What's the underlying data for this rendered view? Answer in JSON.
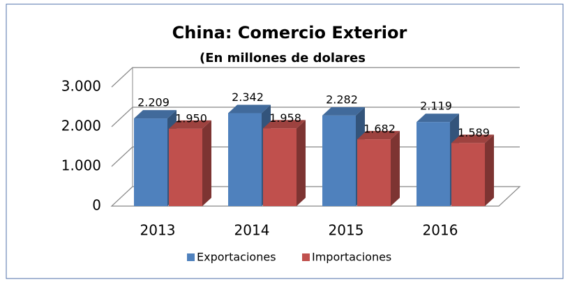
{
  "chart_data": {
    "type": "bar3d",
    "title": "China: Comercio Exterior",
    "subtitle": "(En millones de dolares",
    "categories": [
      "2013",
      "2014",
      "2015",
      "2016"
    ],
    "series": [
      {
        "name": "Exportaciones",
        "color": "#4f81bd",
        "values": [
          2209,
          2342,
          2282,
          2119
        ],
        "value_labels": [
          "2.209",
          "2.342",
          "2.282",
          "2.119"
        ]
      },
      {
        "name": "Importaciones",
        "color": "#c0504d",
        "values": [
          1950,
          1958,
          1682,
          1589
        ],
        "value_labels": [
          "1.950",
          "1.958",
          "1.682",
          "1.589"
        ]
      }
    ],
    "ylim": [
      0,
      3000
    ],
    "yticks": [
      0,
      {
        "value": 1000,
        "label": "1.000"
      },
      {
        "value": 2000,
        "label": "2.000"
      },
      {
        "value": 3000,
        "label": "3.000"
      }
    ],
    "grid": true,
    "legend": "bottom"
  }
}
